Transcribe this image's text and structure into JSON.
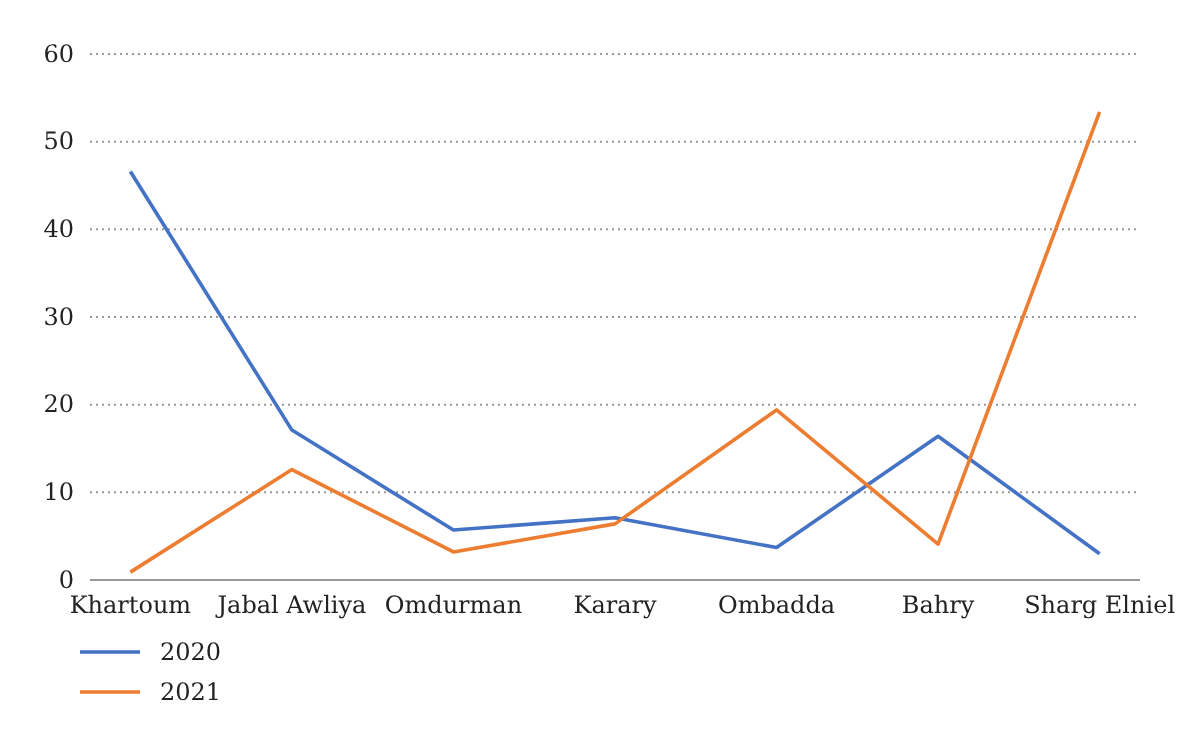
{
  "chart_data": {
    "type": "line",
    "categories": [
      "Khartoum",
      "Jabal Awliya",
      "Omdurman",
      "Karary",
      "Ombadda",
      "Bahry",
      "Sharg Elniel"
    ],
    "series": [
      {
        "name": "2020",
        "color": "#4472c4",
        "values": [
          46.6,
          17.1,
          5.7,
          7.1,
          3.7,
          16.4,
          3.0
        ]
      },
      {
        "name": "2021",
        "color": "#ed7d31",
        "values": [
          0.9,
          12.6,
          3.2,
          6.4,
          19.4,
          4.1,
          53.4
        ]
      }
    ],
    "ylim": [
      0,
      60
    ],
    "yticks": [
      0,
      10,
      20,
      30,
      40,
      50,
      60
    ],
    "grid": "y",
    "legend": "bottom left",
    "marker": "none",
    "line_style": "solid"
  }
}
